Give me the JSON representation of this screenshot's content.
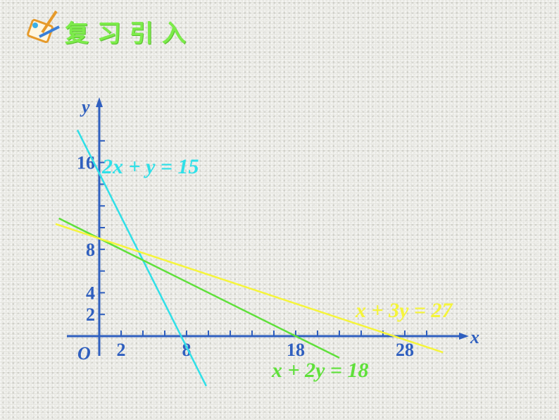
{
  "header": {
    "title": "复习引入",
    "icon": "notepad-pencil-icon"
  },
  "chart_data": {
    "type": "line",
    "xlabel": "x",
    "ylabel": "y",
    "origin_label": "O",
    "x_tick_labels": [
      2,
      8,
      18,
      28
    ],
    "y_tick_labels": [
      2,
      4,
      8,
      16
    ],
    "tick_step": 2,
    "xlim": [
      -3,
      33
    ],
    "ylim": [
      -4,
      21
    ],
    "grid": false,
    "series": [
      {
        "name": "2x + y = 15",
        "a": 2,
        "b": 1,
        "c": 15,
        "color": "#2FE0E8",
        "x_range": [
          -2,
          9.8
        ]
      },
      {
        "name": "x + 2y = 18",
        "a": 1,
        "b": 2,
        "c": 18,
        "color": "#5FE03A",
        "x_range": [
          -3.7,
          22
        ]
      },
      {
        "name": "x + 3y = 27",
        "a": 1,
        "b": 3,
        "c": 27,
        "color": "#F5F53A",
        "x_range": [
          -4,
          31.5
        ]
      }
    ],
    "axis_color": "#2f5fbf"
  }
}
